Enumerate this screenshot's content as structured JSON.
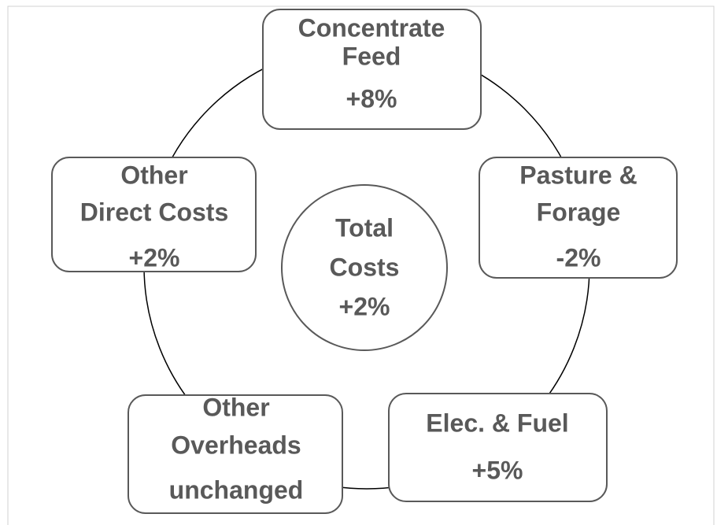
{
  "center": {
    "label_lines": [
      "Total",
      "Costs"
    ],
    "change": "+2%"
  },
  "nodes": [
    {
      "label_lines": [
        "Concentrate",
        "Feed"
      ],
      "change": "+8%"
    },
    {
      "label_lines": [
        "Pasture &",
        "Forage"
      ],
      "change": "-2%"
    },
    {
      "label_lines": [
        "Elec. & Fuel"
      ],
      "change": "+5%"
    },
    {
      "label_lines": [
        "Other",
        "Overheads"
      ],
      "change": "unchanged"
    },
    {
      "label_lines": [
        "Other",
        "Direct Costs"
      ],
      "change": "+2%"
    }
  ]
}
